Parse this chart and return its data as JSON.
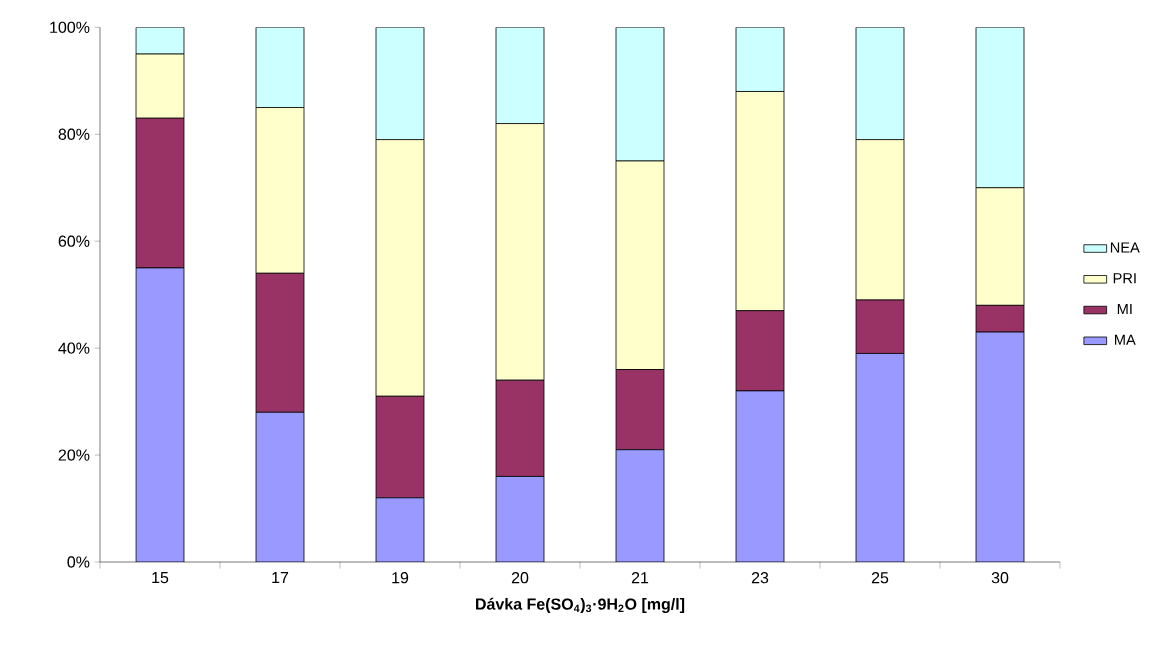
{
  "chart_data": {
    "type": "bar",
    "stacked": true,
    "xlabel": "Dávka Fe(SO$_{4}$)$_{3}$·9H$_{2}$O [mg/l]",
    "categories": [
      "15",
      "17",
      "19",
      "20",
      "21",
      "23",
      "25",
      "30"
    ],
    "series": [
      {
        "name": "MA",
        "color": "#9999ff",
        "values": [
          55,
          28,
          12,
          16,
          21,
          32,
          39,
          43
        ]
      },
      {
        "name": "MI",
        "color": "#993366",
        "values": [
          28,
          26,
          19,
          18,
          15,
          15,
          10,
          5
        ]
      },
      {
        "name": "PRI",
        "color": "#ffffcc",
        "values": [
          12,
          31,
          48,
          48,
          39,
          41,
          30,
          22
        ]
      },
      {
        "name": "NEA",
        "color": "#ccffff",
        "values": [
          5,
          15,
          21,
          18,
          25,
          12,
          21,
          30
        ]
      }
    ],
    "ylim": [
      0,
      100
    ],
    "yticks": [
      {
        "value": 0,
        "label": "0%"
      },
      {
        "value": 20,
        "label": "20%"
      },
      {
        "value": 40,
        "label": "40%"
      },
      {
        "value": 60,
        "label": "60%"
      },
      {
        "value": 80,
        "label": "80%"
      },
      {
        "value": 100,
        "label": "100%"
      }
    ],
    "grid": false,
    "legend": "right"
  }
}
